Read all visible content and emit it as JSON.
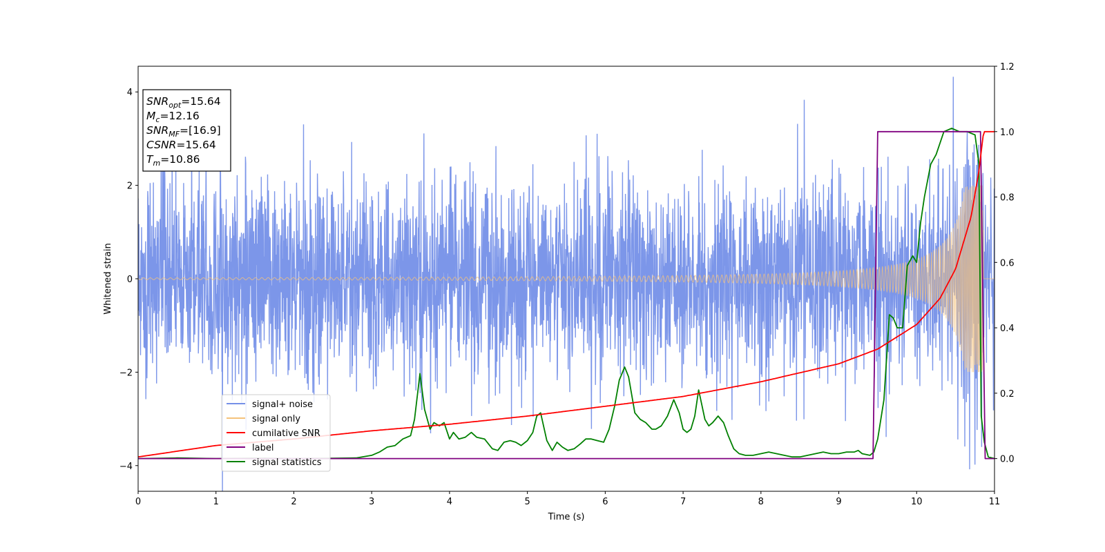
{
  "chart_data": {
    "type": "line",
    "xlabel": "Time (s)",
    "ylabel": "Whitened strain",
    "xlim": [
      0,
      11
    ],
    "ylim": [
      -4.55,
      4.55
    ],
    "y2lim": [
      -0.1,
      1.2
    ],
    "x_ticks": [
      0,
      1,
      2,
      3,
      4,
      5,
      6,
      7,
      8,
      9,
      10,
      11
    ],
    "y_ticks": [
      -4,
      -2,
      0,
      2,
      4
    ],
    "y2_ticks": [
      "0.0",
      "0.2",
      "0.4",
      "0.6",
      "0.8",
      "1.0",
      "1.2"
    ],
    "grid": false,
    "legend_position": "lower-left",
    "annotation": [
      {
        "base": "SNR",
        "sub": "opt",
        "value": "=15.64"
      },
      {
        "base": "M",
        "sub": "c",
        "value": "=12.16"
      },
      {
        "base": "SNR",
        "sub": "MF",
        "value": "=[16.9]"
      },
      {
        "base": "CSNR",
        "sub": "",
        "value": "=15.64"
      },
      {
        "base": "T",
        "sub": "m",
        "value": "=10.86"
      }
    ],
    "series": [
      {
        "name": "signal+ noise",
        "color": "#7590e8",
        "axis": "left",
        "description_values": {
          "noise_sigma": 1.0,
          "t_start": 0,
          "t_end": 11,
          "merger_time": 10.86,
          "spike_max": 4.1,
          "spike_min": -4.15
        }
      },
      {
        "name": "signal only",
        "color": "#f5c27a",
        "axis": "left",
        "description_values": {
          "amplitude_start": 0.02,
          "amplitude_peak": 2.0,
          "merger_time": 10.86
        }
      },
      {
        "name": "cumilative SNR",
        "color": "#ff0000",
        "axis": "right",
        "x": [
          0,
          1,
          2,
          3,
          4,
          5,
          6,
          7,
          8,
          9,
          9.5,
          10,
          10.3,
          10.5,
          10.7,
          10.8,
          10.86,
          11
        ],
        "y": [
          0.005,
          0.04,
          0.06,
          0.085,
          0.105,
          0.13,
          0.16,
          0.19,
          0.235,
          0.29,
          0.335,
          0.41,
          0.49,
          0.58,
          0.74,
          0.88,
          1.0,
          1.0
        ]
      },
      {
        "name": "label",
        "color": "#800080",
        "axis": "right",
        "x": [
          0,
          9.44,
          9.5,
          10.82,
          10.88,
          11
        ],
        "y": [
          0,
          0,
          1,
          1,
          0,
          0
        ]
      },
      {
        "name": "signal statistics",
        "color": "#008000",
        "axis": "right",
        "x": [
          0,
          0.5,
          1,
          1.5,
          2,
          2.5,
          2.8,
          3.0,
          3.1,
          3.2,
          3.3,
          3.4,
          3.5,
          3.55,
          3.62,
          3.68,
          3.75,
          3.8,
          3.87,
          3.93,
          4.0,
          4.05,
          4.12,
          4.2,
          4.28,
          4.35,
          4.45,
          4.55,
          4.62,
          4.7,
          4.78,
          4.85,
          4.92,
          5.0,
          5.07,
          5.12,
          5.17,
          5.25,
          5.32,
          5.38,
          5.45,
          5.52,
          5.6,
          5.68,
          5.75,
          5.82,
          5.9,
          5.98,
          6.05,
          6.12,
          6.18,
          6.25,
          6.3,
          6.38,
          6.45,
          6.52,
          6.6,
          6.65,
          6.72,
          6.8,
          6.88,
          6.95,
          7.0,
          7.05,
          7.1,
          7.15,
          7.2,
          7.28,
          7.33,
          7.38,
          7.45,
          7.52,
          7.58,
          7.65,
          7.72,
          7.8,
          7.9,
          8.0,
          8.1,
          8.2,
          8.3,
          8.4,
          8.5,
          8.6,
          8.7,
          8.8,
          8.9,
          9.0,
          9.1,
          9.2,
          9.25,
          9.3,
          9.4,
          9.45,
          9.5,
          9.58,
          9.65,
          9.7,
          9.75,
          9.82,
          9.88,
          9.95,
          10.0,
          10.05,
          10.1,
          10.18,
          10.25,
          10.35,
          10.45,
          10.55,
          10.65,
          10.75,
          10.8,
          10.83,
          10.87,
          10.92,
          11.0
        ],
        "y": [
          0,
          0.002,
          0,
          0.001,
          0,
          0.001,
          0.002,
          0.01,
          0.02,
          0.035,
          0.04,
          0.06,
          0.07,
          0.12,
          0.26,
          0.15,
          0.09,
          0.11,
          0.1,
          0.11,
          0.06,
          0.08,
          0.06,
          0.065,
          0.08,
          0.065,
          0.06,
          0.03,
          0.025,
          0.05,
          0.055,
          0.05,
          0.04,
          0.055,
          0.08,
          0.13,
          0.14,
          0.055,
          0.025,
          0.05,
          0.035,
          0.025,
          0.03,
          0.045,
          0.06,
          0.06,
          0.055,
          0.05,
          0.09,
          0.16,
          0.24,
          0.28,
          0.25,
          0.14,
          0.12,
          0.11,
          0.09,
          0.09,
          0.1,
          0.13,
          0.18,
          0.14,
          0.09,
          0.08,
          0.09,
          0.13,
          0.21,
          0.12,
          0.1,
          0.11,
          0.13,
          0.11,
          0.07,
          0.03,
          0.015,
          0.01,
          0.01,
          0.015,
          0.02,
          0.015,
          0.01,
          0.005,
          0.005,
          0.01,
          0.015,
          0.02,
          0.015,
          0.015,
          0.02,
          0.02,
          0.025,
          0.015,
          0.01,
          0.02,
          0.06,
          0.18,
          0.44,
          0.43,
          0.4,
          0.4,
          0.59,
          0.62,
          0.6,
          0.72,
          0.8,
          0.9,
          0.93,
          1.0,
          1.01,
          1.0,
          1.0,
          0.99,
          0.9,
          0.13,
          0.05,
          0.005,
          0
        ]
      }
    ]
  }
}
